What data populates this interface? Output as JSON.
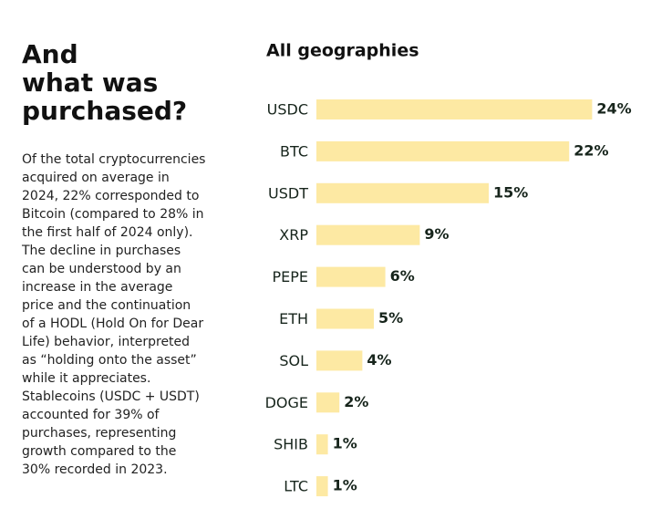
{
  "heading": {
    "lines": [
      "And",
      "what was",
      "purchased?"
    ]
  },
  "body": {
    "lines": [
      "Of the total cryptocurrencies",
      "acquired on average in",
      "2024, 22% corresponded to",
      "Bitcoin (compared to 28% in",
      "the first half of 2024 only).",
      "The decline in purchases",
      "can be understood by an",
      "increase in the average",
      "price and the continuation",
      "of a HODL (Hold On for Dear",
      "Life) behavior, interpreted",
      "as “holding onto the asset”",
      "while it appreciates.",
      "Stablecoins (USDC + USDT)",
      "accounted for 39% of",
      "purchases, representing",
      "growth compared to the",
      "30% recorded in 2023."
    ]
  },
  "chart_data": {
    "type": "hbar",
    "title": "All geographies",
    "categories": [
      "USDC",
      "BTC",
      "USDT",
      "XRP",
      "PEPE",
      "ETH",
      "SOL",
      "DOGE",
      "SHIB",
      "LTC"
    ],
    "values": [
      24,
      22,
      15,
      9,
      6,
      5,
      4,
      2,
      1,
      1
    ],
    "value_labels": [
      "24%",
      "22%",
      "15%",
      "9%",
      "6%",
      "5%",
      "4%",
      "2%",
      "1%",
      "1%"
    ],
    "color": "#fde9a3"
  }
}
